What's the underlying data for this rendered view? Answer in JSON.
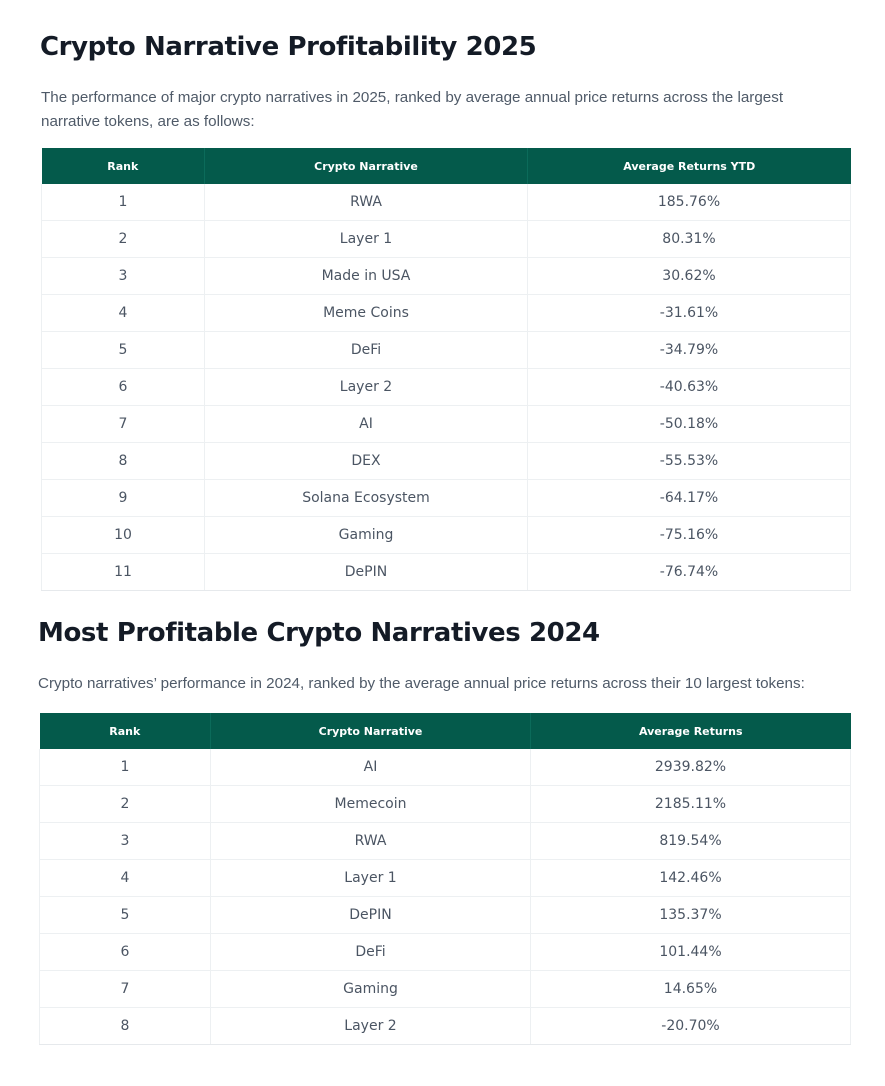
{
  "section_2025": {
    "title": "Crypto Narrative Profitability 2025",
    "intro": "The performance of major crypto narratives in 2025, ranked by average annual price returns across the largest narrative tokens, are as follows:",
    "headers": [
      "Rank",
      "Crypto Narrative",
      "Average Returns YTD"
    ],
    "rows": [
      [
        "1",
        "RWA",
        "185.76%"
      ],
      [
        "2",
        "Layer 1",
        "80.31%"
      ],
      [
        "3",
        "Made in USA",
        "30.62%"
      ],
      [
        "4",
        "Meme Coins",
        "-31.61%"
      ],
      [
        "5",
        "DeFi",
        "-34.79%"
      ],
      [
        "6",
        "Layer 2",
        "-40.63%"
      ],
      [
        "7",
        "AI",
        "-50.18%"
      ],
      [
        "8",
        "DEX",
        "-55.53%"
      ],
      [
        "9",
        "Solana Ecosystem",
        "-64.17%"
      ],
      [
        "10",
        "Gaming",
        "-75.16%"
      ],
      [
        "11",
        "DePIN",
        "-76.74%"
      ]
    ]
  },
  "section_2024": {
    "title": "Most Profitable Crypto Narratives 2024",
    "intro": "Crypto narratives’ performance in 2024, ranked by the average annual price returns across their 10 largest tokens:",
    "headers": [
      "Rank",
      "Crypto Narrative",
      "Average Returns"
    ],
    "rows": [
      [
        "1",
        "AI",
        "2939.82%"
      ],
      [
        "2",
        "Memecoin",
        "2185.11%"
      ],
      [
        "3",
        "RWA",
        "819.54%"
      ],
      [
        "4",
        "Layer 1",
        "142.46%"
      ],
      [
        "5",
        "DePIN",
        "135.37%"
      ],
      [
        "6",
        "DeFi",
        "101.44%"
      ],
      [
        "7",
        "Gaming",
        "14.65%"
      ],
      [
        "8",
        "Layer 2",
        "-20.70%"
      ]
    ]
  }
}
